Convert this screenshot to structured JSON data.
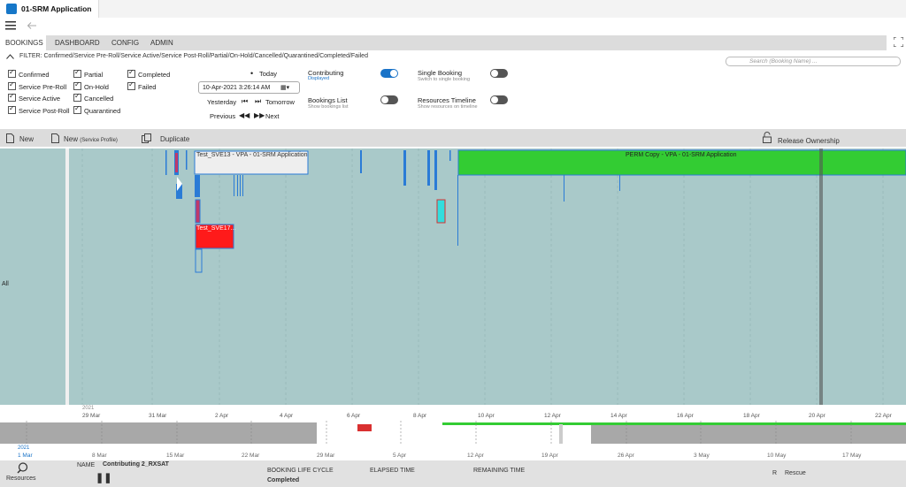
{
  "app": {
    "title": "01-SRM Application"
  },
  "nav": {
    "tabs": [
      "BOOKINGS",
      "DASHBOARD",
      "CONFIG",
      "ADMIN"
    ]
  },
  "filter": {
    "text": "FILTER: Confirmed/Service Pre-Roll/Service Active/Service Post-Roll/Partial/On-Hold/Cancelled/Quarantined/Completed/Failed"
  },
  "search": {
    "placeholder": "Search (Booking Name) ..."
  },
  "checkboxes": {
    "confirmed": "Confirmed",
    "pre_roll": "Service Pre-Roll",
    "active": "Service Active",
    "post_roll": "Service Post-Roll",
    "partial": "Partial",
    "on_hold": "On-Hold",
    "cancelled": "Cancelled",
    "quarantined": "Quarantined",
    "completed": "Completed",
    "failed": "Failed"
  },
  "datenav": {
    "today": "Today",
    "date": "10-Apr-2021 3:26:14 AM",
    "yesterday": "Yesterday",
    "tomorrow": "Tomorrow",
    "previous": "Previous",
    "next": "Next"
  },
  "toggles": {
    "contributing": {
      "label": "Contributing",
      "sub": "Displayed",
      "on": true
    },
    "single_booking": {
      "label": "Single Booking",
      "sub": "Switch to single booking",
      "on": false
    },
    "bookings_list": {
      "label": "Bookings List",
      "sub": "Show bookings list",
      "on": false
    },
    "resources_timeline": {
      "label": "Resources Timeline",
      "sub": "Show resources on timeline",
      "on": false
    }
  },
  "actions": {
    "new": "New",
    "new_profile": "New",
    "new_profile_sub": "(Service Profile)",
    "duplicate": "Duplicate",
    "release": "Release Ownership"
  },
  "timeline": {
    "row_label": "All",
    "bookings": [
      {
        "name": "Test_SVE13 - VPA - 01-SRM Application"
      },
      {
        "name": "Test_SVE17..."
      },
      {
        "name": "PERM Copy - VPA - 01-SRM Application"
      }
    ],
    "year": "2021",
    "ticks": [
      "29 Mar",
      "31 Mar",
      "2 Apr",
      "4 Apr",
      "6 Apr",
      "8 Apr",
      "10 Apr",
      "12 Apr",
      "14 Apr",
      "16 Apr",
      "18 Apr",
      "20 Apr",
      "22 Apr"
    ]
  },
  "overview": {
    "year": "2021",
    "ticks": [
      "1 Mar",
      "8 Mar",
      "15 Mar",
      "22 Mar",
      "29 Mar",
      "5 Apr",
      "12 Apr",
      "19 Apr",
      "26 Apr",
      "3 May",
      "10 May",
      "17 May"
    ]
  },
  "status": {
    "resources": "Resources",
    "name_label": "NAME",
    "name_value": "Contributing 2_RXSAT",
    "lifecycle_label": "BOOKING LIFE CYCLE",
    "lifecycle_value": "Completed",
    "elapsed_label": "ELAPSED TIME",
    "remaining_label": "REMAINING TIME",
    "r_label": "R",
    "rescue_label": "Rescue"
  },
  "colors": {
    "timeline_bg": "#a9c9c9",
    "booking_green": "#33cc33",
    "booking_red": "#ff1a1a",
    "accent": "#1a73c8"
  }
}
